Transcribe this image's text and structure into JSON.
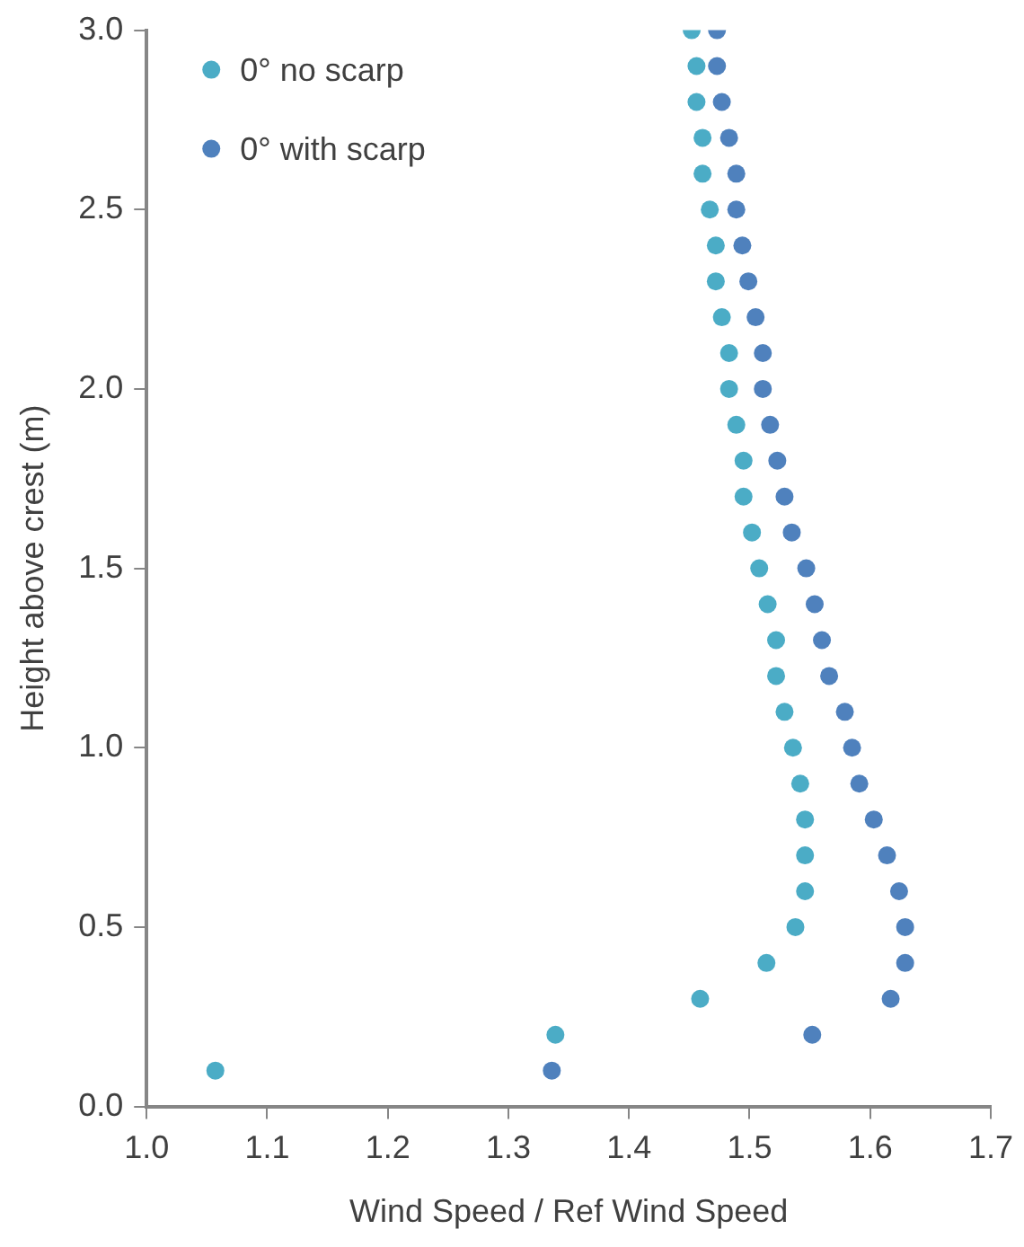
{
  "chart_data": {
    "type": "scatter",
    "xlabel": "Wind Speed / Ref Wind Speed",
    "ylabel": "Height above crest (m)",
    "xlim": [
      1.0,
      1.7
    ],
    "xticks": [
      {
        "value": 1.0,
        "label": "1.0"
      },
      {
        "value": 1.1,
        "label": "1.1"
      },
      {
        "value": 1.2,
        "label": "1.2"
      },
      {
        "value": 1.3,
        "label": "1.3"
      },
      {
        "value": 1.4,
        "label": "1.4"
      },
      {
        "value": 1.5,
        "label": "1.5"
      },
      {
        "value": 1.6,
        "label": "1.6"
      },
      {
        "value": 1.7,
        "label": "1.7"
      }
    ],
    "ylim": [
      0,
      3.0
    ],
    "yticks": [
      {
        "value": 0,
        "label": "0.0"
      },
      {
        "value": 0.5,
        "label": "0.5"
      },
      {
        "value": 1.0,
        "label": "1.0"
      },
      {
        "value": 1.5,
        "label": "1.5"
      },
      {
        "value": 2.0,
        "label": "2.0"
      },
      {
        "value": 2.5,
        "label": "2.5"
      },
      {
        "value": 3.0,
        "label": "3.0"
      }
    ],
    "grid": false,
    "legend": "top left",
    "marker": "circle",
    "series": [
      {
        "name": "0° no scarp",
        "color": "#4bacc6",
        "x": [
          1.057,
          1.339,
          1.459,
          1.514,
          1.538,
          1.546,
          1.546,
          1.546,
          1.542,
          1.536,
          1.529,
          1.522,
          1.522,
          1.515,
          1.508,
          1.502,
          1.495,
          1.495,
          1.489,
          1.483,
          1.483,
          1.477,
          1.472,
          1.472,
          1.467,
          1.461,
          1.461,
          1.456,
          1.456,
          1.452
        ],
        "values": [
          0.1,
          0.2,
          0.3,
          0.4,
          0.5,
          0.6,
          0.7,
          0.8,
          0.9,
          1.0,
          1.1,
          1.2,
          1.3,
          1.4,
          1.5,
          1.6,
          1.7,
          1.8,
          1.9,
          2.0,
          2.1,
          2.2,
          2.3,
          2.4,
          2.5,
          2.6,
          2.7,
          2.8,
          2.9,
          3.0
        ]
      },
      {
        "name": "0° with scarp",
        "color": "#4f81bd",
        "x": [
          1.336,
          1.552,
          1.617,
          1.629,
          1.629,
          1.624,
          1.614,
          1.603,
          1.591,
          1.585,
          1.579,
          1.566,
          1.56,
          1.554,
          1.547,
          1.535,
          1.529,
          1.523,
          1.517,
          1.511,
          1.511,
          1.505,
          1.499,
          1.494,
          1.489,
          1.489,
          1.483,
          1.477,
          1.473,
          1.473
        ],
        "values": [
          0.1,
          0.2,
          0.3,
          0.4,
          0.5,
          0.6,
          0.7,
          0.8,
          0.9,
          1.0,
          1.1,
          1.2,
          1.3,
          1.4,
          1.5,
          1.6,
          1.7,
          1.8,
          1.9,
          2.0,
          2.1,
          2.2,
          2.3,
          2.4,
          2.5,
          2.6,
          2.7,
          2.8,
          2.9,
          3.0
        ]
      }
    ]
  }
}
